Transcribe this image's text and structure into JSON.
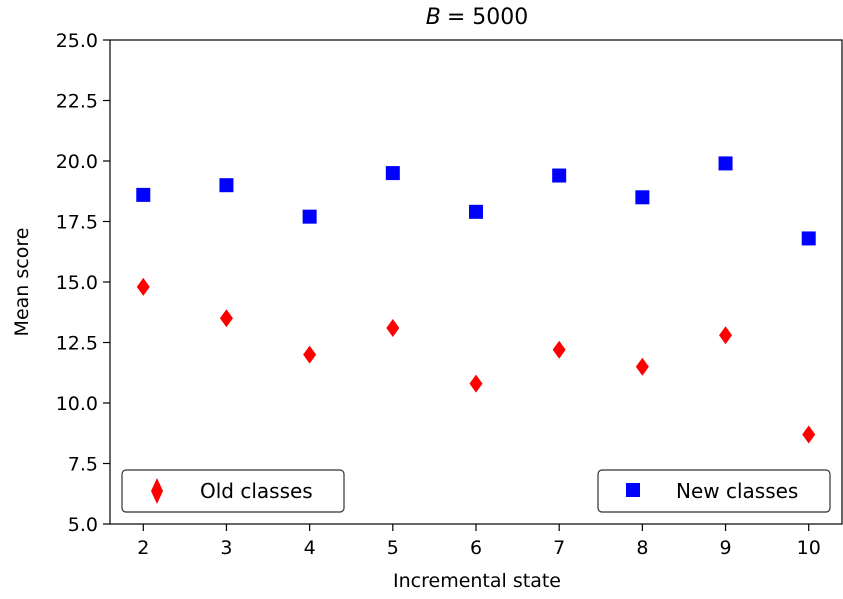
{
  "chart_data": {
    "type": "scatter",
    "title_prefix": "B",
    "title_value": "= 5000",
    "xlabel": "Incremental state",
    "ylabel": "Mean score",
    "x": [
      2,
      3,
      4,
      5,
      6,
      7,
      8,
      9,
      10
    ],
    "x_tick_labels": [
      "2",
      "3",
      "4",
      "5",
      "6",
      "7",
      "8",
      "9",
      "10"
    ],
    "y_ticks": [
      5.0,
      7.5,
      10.0,
      12.5,
      15.0,
      17.5,
      20.0,
      22.5,
      25.0
    ],
    "y_tick_labels": [
      "5.0",
      "7.5",
      "10.0",
      "12.5",
      "15.0",
      "17.5",
      "20.0",
      "22.5",
      "25.0"
    ],
    "xlim": [
      1.6,
      10.4
    ],
    "ylim": [
      5.0,
      25.0
    ],
    "grid": false,
    "series": [
      {
        "name": "Old classes",
        "marker": "diamond",
        "color": "#ff0000",
        "values": [
          14.8,
          13.5,
          12.0,
          13.1,
          10.8,
          12.2,
          11.5,
          12.8,
          8.7
        ],
        "legend_position": "lower-left"
      },
      {
        "name": "New classes",
        "marker": "square",
        "color": "#0000ff",
        "values": [
          18.6,
          19.0,
          17.7,
          19.5,
          17.9,
          19.4,
          18.5,
          19.9,
          16.8
        ],
        "legend_position": "lower-right"
      }
    ]
  }
}
